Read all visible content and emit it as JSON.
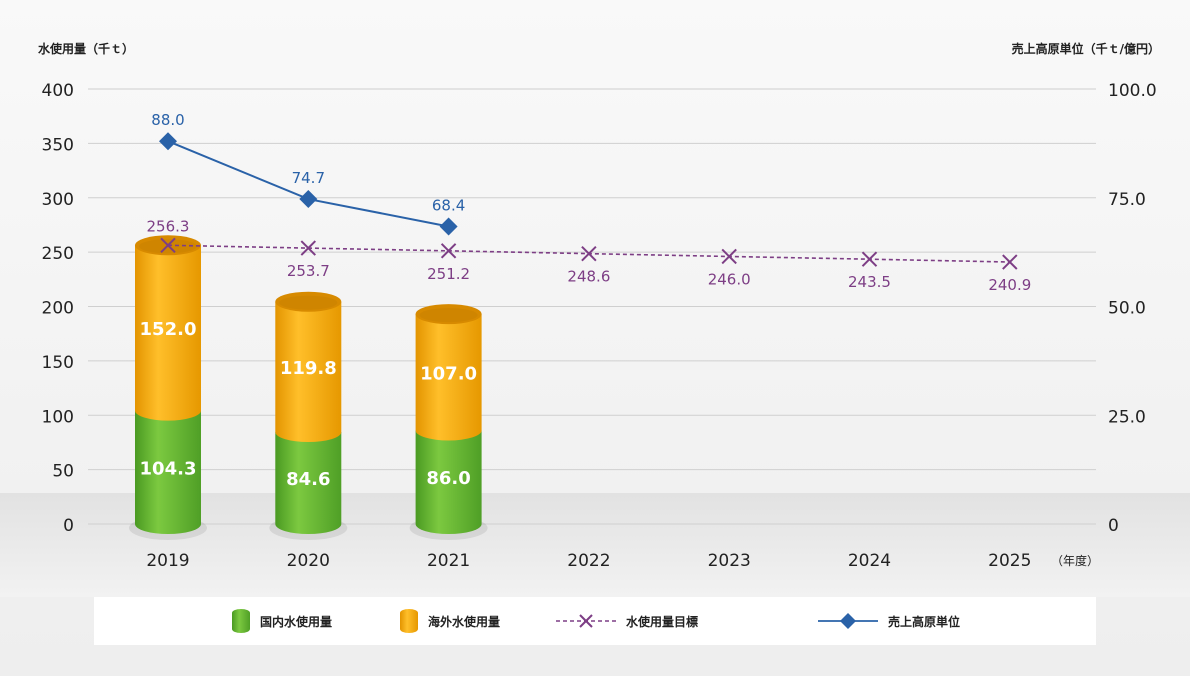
{
  "chart_data": {
    "type": "bar",
    "categories": [
      "2019",
      "2020",
      "2021",
      "2022",
      "2023",
      "2024",
      "2025"
    ],
    "x_unit_label": "（年度）",
    "y_left": {
      "label": "水使用量（千ｔ）",
      "range": [
        0,
        400
      ],
      "ticks": [
        "0",
        "50",
        "100",
        "150",
        "200",
        "250",
        "300",
        "350",
        "400"
      ]
    },
    "y_right": {
      "label": "売上高原単位（千ｔ/億円）",
      "range": [
        0,
        100
      ],
      "ticks": [
        "0",
        "25.0",
        "50.0",
        "75.0",
        "100.0"
      ]
    },
    "grid": true,
    "legend_position": "bottom",
    "series": [
      {
        "name": "国内水使用量",
        "kind": "stacked-bar",
        "axis": "left",
        "color": "#5aac2d",
        "values": [
          104.3,
          84.6,
          86.0,
          null,
          null,
          null,
          null
        ],
        "labels": [
          "104.3",
          "84.6",
          "86.0"
        ]
      },
      {
        "name": "海外水使用量",
        "kind": "stacked-bar",
        "axis": "left",
        "color": "#f0a500",
        "values": [
          152.0,
          119.8,
          107.0,
          null,
          null,
          null,
          null
        ],
        "labels": [
          "152.0",
          "119.8",
          "107.0"
        ]
      },
      {
        "name": "水使用量目標",
        "kind": "dashed-line",
        "axis": "left",
        "color": "#7d3e85",
        "marker": "x",
        "values": [
          256.3,
          253.7,
          251.2,
          248.6,
          246.0,
          243.5,
          240.9
        ],
        "labels": [
          "256.3",
          "253.7",
          "251.2",
          "248.6",
          "246.0",
          "243.5",
          "240.9"
        ]
      },
      {
        "name": "売上高原単位",
        "kind": "line",
        "axis": "right",
        "color": "#2a62a8",
        "marker": "diamond",
        "values": [
          88.0,
          74.7,
          68.4,
          null,
          null,
          null,
          null
        ],
        "labels": [
          "88.0",
          "74.7",
          "68.4"
        ]
      }
    ]
  }
}
